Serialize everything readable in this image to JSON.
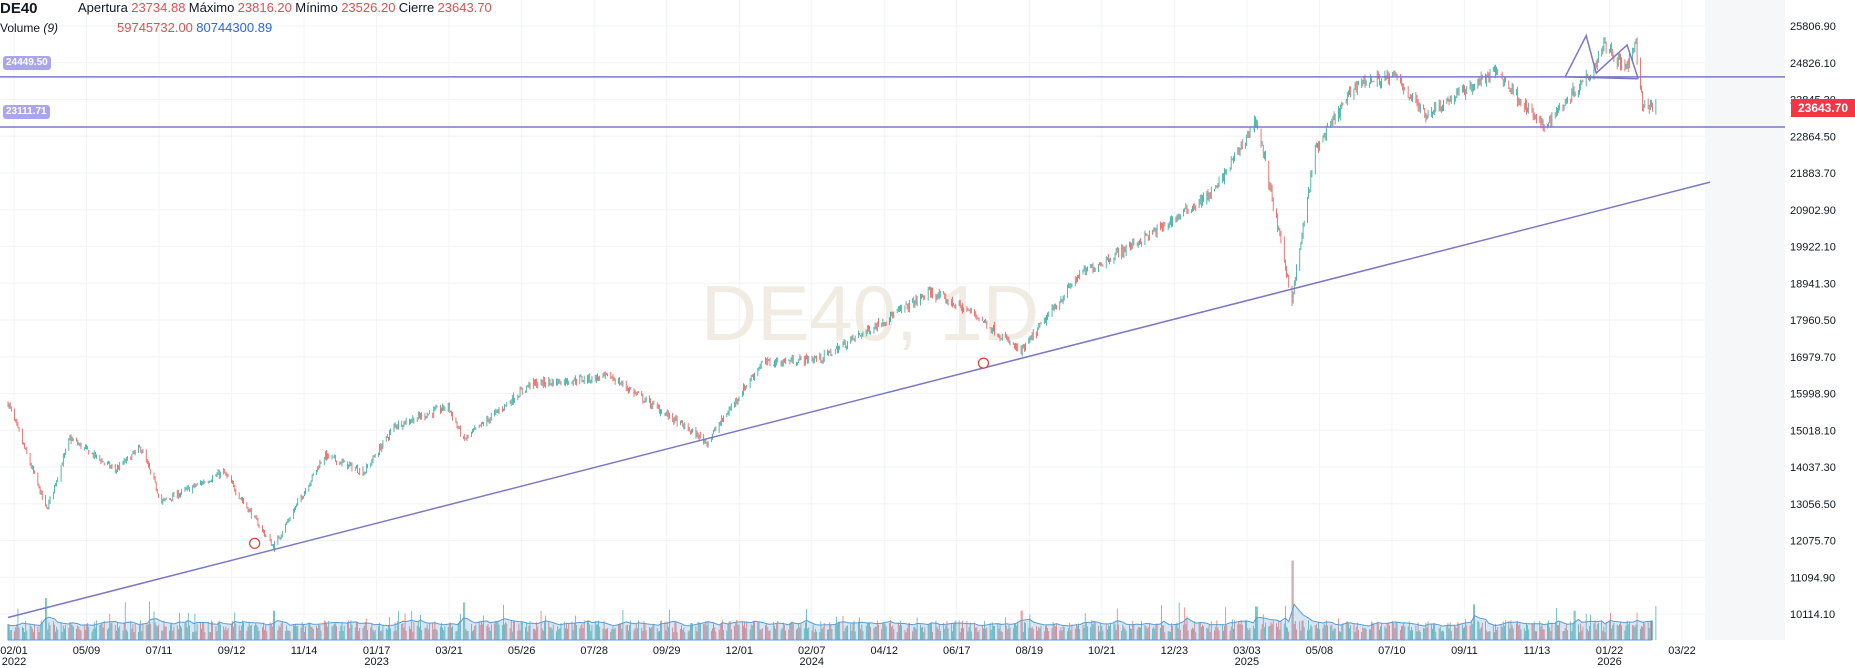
{
  "header": {
    "symbol": "DE40",
    "open_label": "Apertura",
    "open_value": "23734.88",
    "high_label": "Máximo",
    "high_value": "23816.20",
    "low_label": "Mínimo",
    "low_value": "23526.20",
    "close_label": "Cierre",
    "close_value": "23643.70",
    "volume_label": "Volume",
    "volume_param": "(9)",
    "volume_value": "59745732.00",
    "volume_ma_value": "80744300.89"
  },
  "watermark": "DE40, 1D",
  "price_tag": "23643.70",
  "horizontal_lines": [
    {
      "label": "24449.50",
      "price": 24449.5
    },
    {
      "label": "23111.71",
      "price": 23111.71
    }
  ],
  "colors": {
    "up": "#26a69a",
    "down": "#ef5350",
    "drawing": "#7b78c4",
    "volume_ma": "#5b9bd5",
    "price_tag": "#f23645"
  },
  "chart_data": {
    "type": "candlestick",
    "symbol": "DE40",
    "timeframe": "1D",
    "y_ticks": [
      "25806.90",
      "24826.10",
      "23845.30",
      "22864.50",
      "21883.70",
      "20902.90",
      "19922.10",
      "18941.30",
      "17960.50",
      "16979.70",
      "15998.90",
      "15018.10",
      "14037.30",
      "13056.50",
      "12075.70",
      "11094.90",
      "10114.10"
    ],
    "x_ticks": [
      {
        "label": "02/01",
        "year": "2022"
      },
      {
        "label": "05/09",
        "year": ""
      },
      {
        "label": "07/11",
        "year": ""
      },
      {
        "label": "09/12",
        "year": ""
      },
      {
        "label": "11/14",
        "year": ""
      },
      {
        "label": "01/17",
        "year": "2023"
      },
      {
        "label": "03/21",
        "year": ""
      },
      {
        "label": "05/26",
        "year": ""
      },
      {
        "label": "07/28",
        "year": ""
      },
      {
        "label": "09/29",
        "year": ""
      },
      {
        "label": "12/01",
        "year": ""
      },
      {
        "label": "02/07",
        "year": "2024"
      },
      {
        "label": "04/12",
        "year": ""
      },
      {
        "label": "06/17",
        "year": ""
      },
      {
        "label": "08/19",
        "year": ""
      },
      {
        "label": "10/21",
        "year": ""
      },
      {
        "label": "12/23",
        "year": ""
      },
      {
        "label": "03/03",
        "year": "2025"
      },
      {
        "label": "05/08",
        "year": ""
      },
      {
        "label": "07/10",
        "year": ""
      },
      {
        "label": "09/11",
        "year": ""
      },
      {
        "label": "11/13",
        "year": ""
      },
      {
        "label": "01/22",
        "year": "2026"
      },
      {
        "label": "03/22",
        "year": ""
      }
    ],
    "price_path": [
      [
        "2022-02-01",
        15750
      ],
      [
        "2022-03-08",
        12900
      ],
      [
        "2022-03-29",
        14800
      ],
      [
        "2022-05-09",
        13950
      ],
      [
        "2022-06-01",
        14550
      ],
      [
        "2022-06-20",
        13100
      ],
      [
        "2022-08-15",
        13900
      ],
      [
        "2022-09-29",
        11900
      ],
      [
        "2022-11-14",
        14350
      ],
      [
        "2022-12-20",
        13900
      ],
      [
        "2023-01-17",
        15150
      ],
      [
        "2023-03-06",
        15650
      ],
      [
        "2023-03-20",
        14750
      ],
      [
        "2023-05-19",
        16250
      ],
      [
        "2023-07-31",
        16450
      ],
      [
        "2023-10-26",
        14700
      ],
      [
        "2023-12-14",
        16800
      ],
      [
        "2024-02-07",
        16950
      ],
      [
        "2024-05-15",
        18700
      ],
      [
        "2024-06-25",
        18100
      ],
      [
        "2024-08-05",
        17100
      ],
      [
        "2024-09-26",
        19150
      ],
      [
        "2024-12-09",
        20400
      ],
      [
        "2025-01-27",
        21400
      ],
      [
        "2025-03-06",
        23300
      ],
      [
        "2025-04-07",
        18500
      ],
      [
        "2025-04-28",
        22500
      ],
      [
        "2025-06-05",
        24300
      ],
      [
        "2025-07-10",
        24450
      ],
      [
        "2025-08-05",
        23450
      ],
      [
        "2025-10-09",
        24600
      ],
      [
        "2025-11-20",
        23100
      ],
      [
        "2026-01-05",
        24700
      ],
      [
        "2026-01-14",
        25400
      ],
      [
        "2026-02-02",
        24650
      ],
      [
        "2026-02-12",
        25250
      ],
      [
        "2026-02-18",
        23700
      ],
      [
        "2026-03-02",
        23643.7
      ]
    ],
    "trendline": [
      [
        "2022-02-01",
        10020
      ],
      [
        "2026-04-20",
        21640
      ]
    ],
    "trendline_touches": [
      [
        "2022-09-12",
        12000
      ],
      [
        "2024-07-02",
        16810
      ]
    ],
    "triangle_pattern": [
      [
        "2025-12-10",
        24450
      ],
      [
        "2025-12-29",
        25550
      ],
      [
        "2026-01-07",
        24550
      ],
      [
        "2026-02-04",
        25300
      ],
      [
        "2026-02-14",
        24400
      ]
    ],
    "volume_spikes": [
      [
        "2022-03-07",
        1.0
      ],
      [
        "2022-09-30",
        0.7
      ],
      [
        "2023-03-20",
        0.9
      ],
      [
        "2024-08-05",
        0.7
      ],
      [
        "2025-03-06",
        0.8
      ],
      [
        "2025-04-07",
        1.9
      ],
      [
        "2025-09-19",
        0.85
      ],
      [
        "2025-12-19",
        0.7
      ]
    ],
    "ylim": [
      9500,
      26200
    ],
    "grid": true,
    "legend": "top-left"
  }
}
